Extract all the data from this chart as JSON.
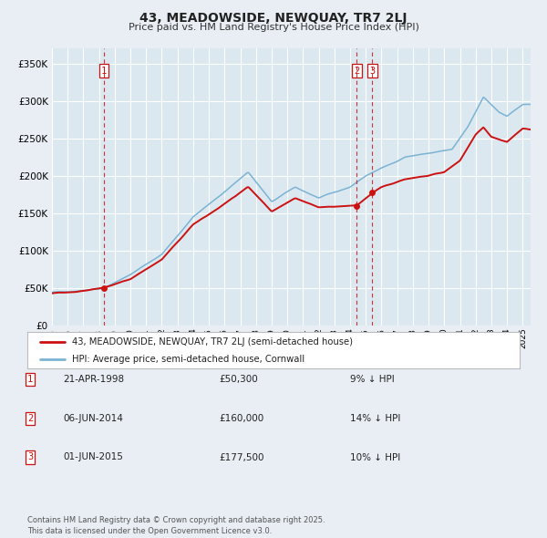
{
  "title": "43, MEADOWSIDE, NEWQUAY, TR7 2LJ",
  "subtitle": "Price paid vs. HM Land Registry's House Price Index (HPI)",
  "bg_color": "#e8eef4",
  "plot_bg_color": "#dce8f0",
  "grid_color": "#ffffff",
  "hpi_color": "#7ab3d4",
  "price_color": "#cc1111",
  "vline_color": "#cc1111",
  "ylim": [
    0,
    370000
  ],
  "yticks": [
    0,
    50000,
    100000,
    150000,
    200000,
    250000,
    300000,
    350000
  ],
  "xlim_start": 1995.0,
  "xlim_end": 2025.5,
  "transactions": [
    {
      "label": "1",
      "date": 1998.31,
      "price": 50300
    },
    {
      "label": "2",
      "date": 2014.43,
      "price": 160000
    },
    {
      "label": "3",
      "date": 2015.42,
      "price": 177500
    }
  ],
  "vlines": [
    1998.31,
    2014.43,
    2015.42
  ],
  "legend_label_red": "43, MEADOWSIDE, NEWQUAY, TR7 2LJ (semi-detached house)",
  "legend_label_blue": "HPI: Average price, semi-detached house, Cornwall",
  "table_rows": [
    {
      "num": "1",
      "date": "21-APR-1998",
      "price": "£50,300",
      "pct": "9% ↓ HPI"
    },
    {
      "num": "2",
      "date": "06-JUN-2014",
      "price": "£160,000",
      "pct": "14% ↓ HPI"
    },
    {
      "num": "3",
      "date": "01-JUN-2015",
      "price": "£177,500",
      "pct": "10% ↓ HPI"
    }
  ],
  "footnote": "Contains HM Land Registry data © Crown copyright and database right 2025.\nThis data is licensed under the Open Government Licence v3.0.",
  "hpi_anchors_x": [
    1995.0,
    1997.0,
    1998.3,
    2000.0,
    2002.0,
    2004.0,
    2005.5,
    2007.5,
    2009.0,
    2010.5,
    2012.0,
    2014.0,
    2015.0,
    2016.0,
    2017.5,
    2019.0,
    2020.5,
    2021.5,
    2022.5,
    2023.5,
    2024.0,
    2025.0,
    2025.5
  ],
  "hpi_anchors_y": [
    44000,
    47000,
    50000,
    68000,
    95000,
    145000,
    170000,
    205000,
    165000,
    185000,
    170000,
    185000,
    200000,
    210000,
    225000,
    230000,
    235000,
    265000,
    305000,
    285000,
    280000,
    295000,
    295000
  ],
  "price_anchors_x": [
    1995.0,
    1997.0,
    1998.3,
    2000.0,
    2002.0,
    2004.0,
    2005.5,
    2007.5,
    2009.0,
    2010.5,
    2012.0,
    2014.43,
    2015.0,
    2015.42,
    2016.0,
    2017.5,
    2019.0,
    2020.0,
    2021.0,
    2022.0,
    2022.5,
    2023.0,
    2024.0,
    2025.0,
    2025.5
  ],
  "price_anchors_y": [
    43000,
    46000,
    50300,
    62000,
    88000,
    135000,
    155000,
    185000,
    152000,
    170000,
    158000,
    160000,
    170000,
    177500,
    185000,
    195000,
    200000,
    205000,
    220000,
    255000,
    265000,
    252000,
    245000,
    263000,
    262000
  ]
}
